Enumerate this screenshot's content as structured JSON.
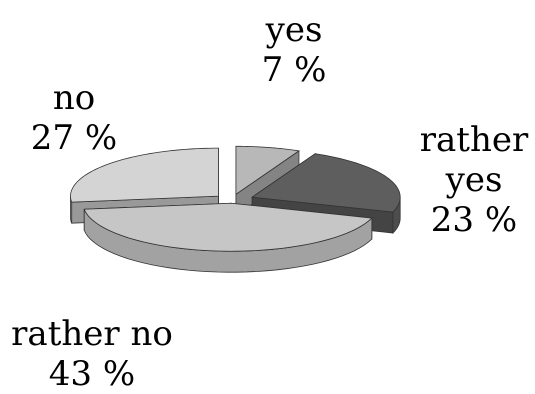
{
  "chart_data": {
    "type": "pie",
    "style": "3d-exploded",
    "categories": [
      "yes",
      "rather yes",
      "rather no",
      "no"
    ],
    "values": [
      7,
      23,
      43,
      27
    ],
    "unit": "%",
    "labels": [
      {
        "category": "yes",
        "lines": [
          "yes"
        ],
        "value_text": "7 %"
      },
      {
        "category": "rather yes",
        "lines": [
          "rather",
          "yes"
        ],
        "value_text": "23 %"
      },
      {
        "category": "rather no",
        "lines": [
          "rather no"
        ],
        "value_text": "43 %"
      },
      {
        "category": "no",
        "lines": [
          "no"
        ],
        "value_text": "27 %"
      }
    ],
    "colors": {
      "yes": "#b8b8b8",
      "rather yes": "#5e5e5e",
      "rather no": "#c6c6c6",
      "no": "#d4d4d4"
    },
    "legend": "none",
    "grid": false
  }
}
